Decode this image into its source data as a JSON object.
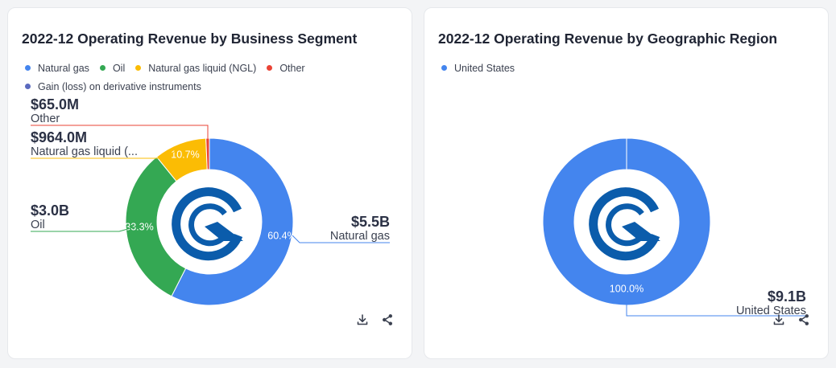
{
  "cards": [
    {
      "title": "2022-12 Operating Revenue by Business Segment",
      "legend": [
        {
          "label": "Natural gas",
          "color": "#4485ee"
        },
        {
          "label": "Oil",
          "color": "#34a853"
        },
        {
          "label": "Natural gas liquid (NGL)",
          "color": "#fbbc04"
        },
        {
          "label": "Other",
          "color": "#ea4335"
        },
        {
          "label": "Gain (loss) on derivative instruments",
          "color": "#5b6abf"
        }
      ]
    },
    {
      "title": "2022-12 Operating Revenue by Geographic Region",
      "legend": [
        {
          "label": "United States",
          "color": "#4485ee"
        }
      ]
    }
  ],
  "icons": [
    "download-icon",
    "share-icon",
    "company-logo"
  ],
  "chart_data": [
    {
      "type": "pie",
      "donut": true,
      "title": "2022-12 Operating Revenue by Business Segment",
      "slices": [
        {
          "name": "Natural gas",
          "value_label": "$5.5B",
          "label_name": "Natural gas",
          "percent": 60.4,
          "pct_label": "60.4%",
          "color": "#4485ee"
        },
        {
          "name": "Oil",
          "value_label": "$3.0B",
          "label_name": "Oil",
          "percent": 33.3,
          "pct_label": "33.3%",
          "color": "#34a853"
        },
        {
          "name": "Natural gas liquid (NGL)",
          "value_label": "$964.0M",
          "label_name": "Natural gas liquid (...",
          "percent": 10.7,
          "pct_label": "10.7%",
          "color": "#fbbc04"
        },
        {
          "name": "Other",
          "value_label": "$65.0M",
          "label_name": "Other",
          "percent": 0.7,
          "pct_label": "",
          "color": "#ea4335"
        }
      ]
    },
    {
      "type": "pie",
      "donut": true,
      "title": "2022-12 Operating Revenue by Geographic Region",
      "slices": [
        {
          "name": "United States",
          "value_label": "$9.1B",
          "label_name": "United States",
          "percent": 100.0,
          "pct_label": "100.0%",
          "color": "#4485ee"
        }
      ]
    }
  ]
}
